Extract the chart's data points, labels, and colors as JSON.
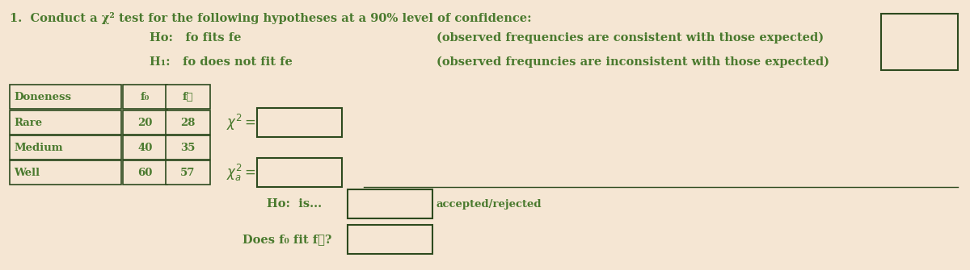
{
  "background_color": "#f5e6d3",
  "text_color": "#4a7a2e",
  "border_color": "#2d4a1e",
  "title_line": "1.  Conduct a χ² test for the following hypotheses at a 90% level of confidence:",
  "ho_line": "Ho:   fo fits fe",
  "h1_line": "H₁:   fo does not fit fe",
  "ho_note": "(observed frequencies are consistent with those expected)",
  "h1_note": "(observed frequncies are inconsistent with those expected)",
  "table_headers": [
    "Doneness",
    "f₀",
    "f⁥"
  ],
  "table_rows": [
    [
      "Rare",
      "20",
      "28"
    ],
    [
      "Medium",
      "40",
      "35"
    ],
    [
      "Well",
      "60",
      "57"
    ]
  ],
  "ho_is_label": "Ho:  is...",
  "accepted_rejected": "accepted/rejected",
  "does_fo_fit": "Does f₀ fit f⁥?"
}
